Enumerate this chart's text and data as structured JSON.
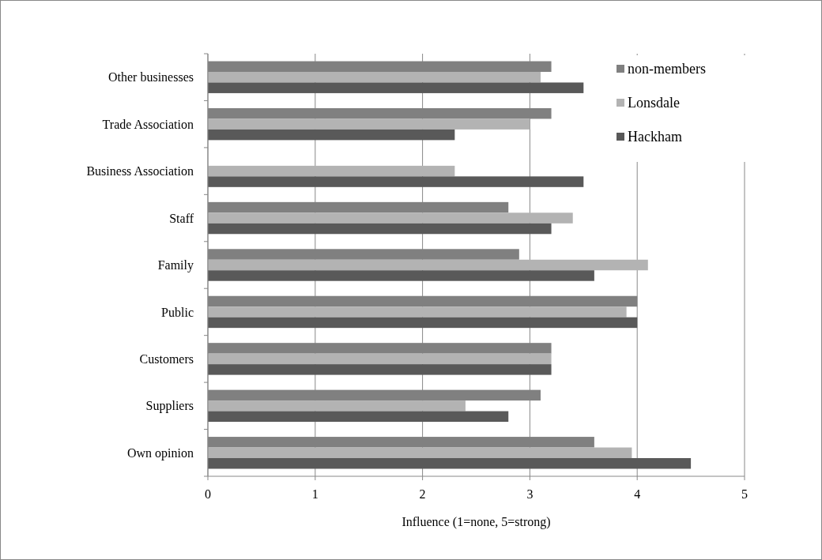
{
  "chart_data": {
    "type": "bar",
    "orientation": "horizontal",
    "xlabel": "Influence (1=none, 5=strong)",
    "categories": [
      "Other businesses",
      "Trade Association",
      "Business Association",
      "Staff",
      "Family",
      "Public",
      "Customers",
      "Suppliers",
      "Own opinion"
    ],
    "series": [
      {
        "name": "non-members",
        "color": "#808080",
        "values": [
          3.2,
          3.2,
          null,
          2.8,
          2.9,
          4.0,
          3.2,
          3.1,
          3.6
        ]
      },
      {
        "name": "Lonsdale",
        "color": "#b3b3b3",
        "values": [
          3.1,
          3.0,
          2.3,
          3.4,
          4.1,
          3.9,
          3.2,
          2.4,
          3.95
        ]
      },
      {
        "name": "Hackham",
        "color": "#595959",
        "values": [
          3.5,
          2.3,
          3.5,
          3.2,
          3.6,
          4.0,
          3.2,
          2.8,
          4.5
        ]
      }
    ],
    "xlim": [
      0,
      5
    ],
    "xticks": [
      0,
      1,
      2,
      3,
      4,
      5
    ],
    "grid": "x",
    "legend": "top right"
  }
}
